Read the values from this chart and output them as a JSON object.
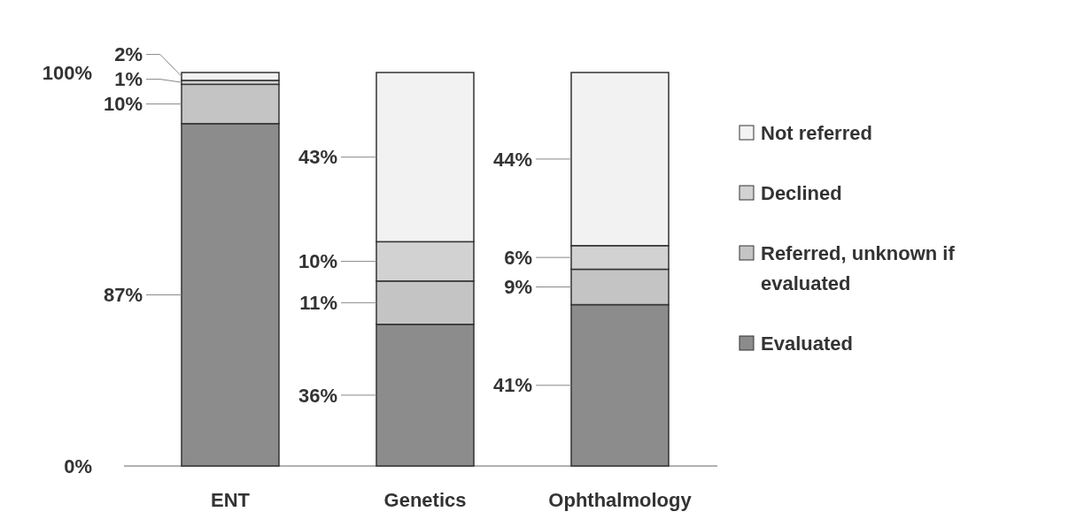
{
  "chart_data": {
    "type": "bar",
    "stacked": true,
    "categories": [
      "ENT",
      "Genetics",
      "Ophthalmology"
    ],
    "ylim": [
      0,
      100
    ],
    "yticks": [
      {
        "value": 0,
        "label": "0%"
      },
      {
        "value": 100,
        "label": "100%"
      }
    ],
    "legend": "right",
    "grid": false,
    "series": [
      {
        "name": "Evaluated",
        "color": "#8c8c8c",
        "values": [
          87,
          36,
          41
        ],
        "value_labels": [
          "87%",
          "36%",
          "41%"
        ]
      },
      {
        "name": "Referred, unknown if evaluated",
        "color": "#c4c4c4",
        "values": [
          10,
          11,
          9
        ],
        "value_labels": [
          "10%",
          "11%",
          "9%"
        ]
      },
      {
        "name": "Declined",
        "color": "#d2d2d2",
        "values": [
          1,
          10,
          6
        ],
        "value_labels": [
          "1%",
          "10%",
          "6%"
        ]
      },
      {
        "name": "Not referred",
        "color": "#f2f2f2",
        "values": [
          2,
          43,
          44
        ],
        "value_labels": [
          "2%",
          "43%",
          "44%"
        ]
      }
    ]
  }
}
